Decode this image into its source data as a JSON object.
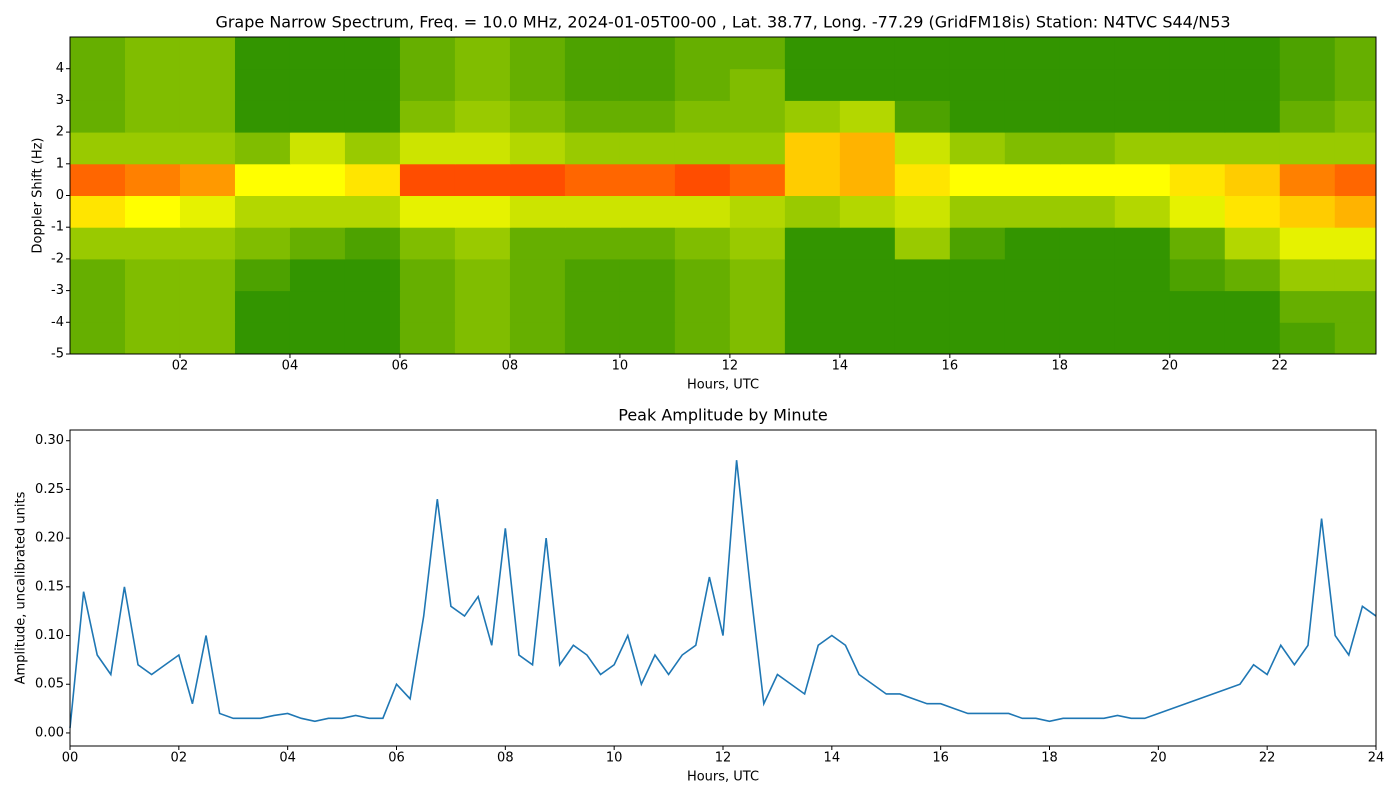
{
  "chart_data": [
    {
      "type": "heatmap",
      "title": "Grape Narrow Spectrum, Freq. = 10.0 MHz, 2024-01-05T00-00 , Lat.  38.77, Long. -77.29 (GridFM18is) Station: N4TVC S44/N53",
      "xlabel": "Hours, UTC",
      "ylabel": "Doppler Shift (Hz)",
      "xlim": [
        0,
        23.75
      ],
      "ylim": [
        -5,
        5
      ],
      "xticks": [
        {
          "value": 2,
          "label": "02"
        },
        {
          "value": 4,
          "label": "04"
        },
        {
          "value": 6,
          "label": "06"
        },
        {
          "value": 8,
          "label": "08"
        },
        {
          "value": 10,
          "label": "10"
        },
        {
          "value": 12,
          "label": "12"
        },
        {
          "value": 14,
          "label": "14"
        },
        {
          "value": 16,
          "label": "16"
        },
        {
          "value": 18,
          "label": "18"
        },
        {
          "value": 20,
          "label": "20"
        },
        {
          "value": 22,
          "label": "22"
        }
      ],
      "yticks": [
        -5,
        -4,
        -3,
        -2,
        -1,
        0,
        1,
        2,
        3,
        4
      ],
      "x_bins": [
        0,
        1,
        2,
        3,
        4,
        5,
        6,
        7,
        8,
        9,
        10,
        11,
        12,
        13,
        14,
        15,
        16,
        17,
        18,
        19,
        20,
        21,
        22,
        23,
        23.75
      ],
      "y_bins": [
        -5,
        -4,
        -3,
        -2,
        -1,
        0,
        1,
        2,
        3,
        4,
        5
      ],
      "colormap": [
        [
          0,
          "#007a00"
        ],
        [
          0.5,
          "#ffff00"
        ],
        [
          1,
          "#ff0000"
        ]
      ],
      "values": [
        [
          0.2,
          0.25,
          0.25,
          0.1,
          0.1,
          0.1,
          0.2,
          0.25,
          0.2,
          0.15,
          0.15,
          0.2,
          0.25,
          0.1,
          0.1,
          0.1,
          0.1,
          0.1,
          0.1,
          0.1,
          0.1,
          0.1,
          0.15,
          0.2
        ],
        [
          0.2,
          0.25,
          0.25,
          0.1,
          0.1,
          0.1,
          0.2,
          0.25,
          0.2,
          0.15,
          0.15,
          0.2,
          0.25,
          0.1,
          0.1,
          0.1,
          0.1,
          0.1,
          0.1,
          0.1,
          0.1,
          0.1,
          0.2,
          0.2
        ],
        [
          0.2,
          0.25,
          0.25,
          0.15,
          0.1,
          0.1,
          0.2,
          0.25,
          0.2,
          0.15,
          0.15,
          0.2,
          0.25,
          0.1,
          0.1,
          0.1,
          0.1,
          0.1,
          0.1,
          0.1,
          0.15,
          0.2,
          0.3,
          0.3
        ],
        [
          0.3,
          0.3,
          0.3,
          0.25,
          0.2,
          0.15,
          0.25,
          0.3,
          0.2,
          0.2,
          0.2,
          0.25,
          0.3,
          0.1,
          0.1,
          0.3,
          0.15,
          0.1,
          0.1,
          0.1,
          0.2,
          0.35,
          0.45,
          0.45
        ],
        [
          0.55,
          0.5,
          0.45,
          0.35,
          0.35,
          0.35,
          0.45,
          0.45,
          0.4,
          0.4,
          0.4,
          0.4,
          0.35,
          0.3,
          0.35,
          0.4,
          0.3,
          0.3,
          0.3,
          0.35,
          0.45,
          0.55,
          0.6,
          0.65
        ],
        [
          0.8,
          0.75,
          0.7,
          0.5,
          0.5,
          0.55,
          0.85,
          0.85,
          0.85,
          0.8,
          0.8,
          0.85,
          0.8,
          0.6,
          0.65,
          0.55,
          0.5,
          0.5,
          0.5,
          0.5,
          0.55,
          0.6,
          0.75,
          0.8
        ],
        [
          0.3,
          0.3,
          0.3,
          0.25,
          0.4,
          0.3,
          0.4,
          0.4,
          0.35,
          0.3,
          0.3,
          0.3,
          0.3,
          0.6,
          0.65,
          0.4,
          0.3,
          0.25,
          0.25,
          0.3,
          0.3,
          0.3,
          0.3,
          0.3
        ],
        [
          0.2,
          0.25,
          0.25,
          0.1,
          0.1,
          0.1,
          0.25,
          0.3,
          0.25,
          0.2,
          0.2,
          0.25,
          0.25,
          0.3,
          0.35,
          0.15,
          0.1,
          0.1,
          0.1,
          0.1,
          0.1,
          0.1,
          0.2,
          0.25
        ],
        [
          0.2,
          0.25,
          0.25,
          0.1,
          0.1,
          0.1,
          0.2,
          0.25,
          0.2,
          0.15,
          0.15,
          0.2,
          0.25,
          0.1,
          0.1,
          0.1,
          0.1,
          0.1,
          0.1,
          0.1,
          0.1,
          0.1,
          0.15,
          0.2
        ],
        [
          0.2,
          0.25,
          0.25,
          0.1,
          0.1,
          0.1,
          0.2,
          0.25,
          0.2,
          0.15,
          0.15,
          0.2,
          0.2,
          0.1,
          0.1,
          0.1,
          0.1,
          0.1,
          0.1,
          0.1,
          0.1,
          0.1,
          0.15,
          0.2
        ]
      ]
    },
    {
      "type": "line",
      "title": "Peak Amplitude by Minute",
      "xlabel": "Hours, UTC",
      "ylabel": "Amplitude, uncalibrated units",
      "xlim": [
        0,
        24
      ],
      "ylim": [
        -0.0134,
        0.311
      ],
      "xticks": [
        {
          "value": 0,
          "label": "00"
        },
        {
          "value": 2,
          "label": "02"
        },
        {
          "value": 4,
          "label": "04"
        },
        {
          "value": 6,
          "label": "06"
        },
        {
          "value": 8,
          "label": "08"
        },
        {
          "value": 10,
          "label": "10"
        },
        {
          "value": 12,
          "label": "12"
        },
        {
          "value": 14,
          "label": "14"
        },
        {
          "value": 16,
          "label": "16"
        },
        {
          "value": 18,
          "label": "18"
        },
        {
          "value": 20,
          "label": "20"
        },
        {
          "value": 22,
          "label": "22"
        },
        {
          "value": 24,
          "label": "24"
        }
      ],
      "yticks": [
        {
          "value": 0,
          "label": "0.00"
        },
        {
          "value": 0.05,
          "label": "0.05"
        },
        {
          "value": 0.1,
          "label": "0.10"
        },
        {
          "value": 0.15,
          "label": "0.15"
        },
        {
          "value": 0.2,
          "label": "0.20"
        },
        {
          "value": 0.25,
          "label": "0.25"
        },
        {
          "value": 0.3,
          "label": "0.30"
        }
      ],
      "color": "#1f77b4",
      "x": [
        0,
        0.25,
        0.5,
        0.75,
        1,
        1.25,
        1.5,
        1.75,
        2,
        2.25,
        2.5,
        2.75,
        3,
        3.25,
        3.5,
        3.75,
        4,
        4.25,
        4.5,
        4.75,
        5,
        5.25,
        5.5,
        5.75,
        6,
        6.25,
        6.5,
        6.75,
        7,
        7.25,
        7.5,
        7.75,
        8,
        8.25,
        8.5,
        8.75,
        9,
        9.25,
        9.5,
        9.75,
        10,
        10.25,
        10.5,
        10.75,
        11,
        11.25,
        11.5,
        11.75,
        12,
        12.25,
        12.5,
        12.75,
        13,
        13.25,
        13.5,
        13.75,
        14,
        14.25,
        14.5,
        14.75,
        15,
        15.25,
        15.5,
        15.75,
        16,
        16.25,
        16.5,
        16.75,
        17,
        17.25,
        17.5,
        17.75,
        18,
        18.25,
        18.5,
        18.75,
        19,
        19.25,
        19.5,
        19.75,
        20,
        20.25,
        20.5,
        20.75,
        21,
        21.25,
        21.5,
        21.75,
        22,
        22.25,
        22.5,
        22.75,
        23,
        23.25,
        23.5,
        23.75,
        24
      ],
      "values": [
        0.005,
        0.145,
        0.08,
        0.06,
        0.15,
        0.07,
        0.06,
        0.07,
        0.08,
        0.03,
        0.1,
        0.02,
        0.015,
        0.015,
        0.015,
        0.018,
        0.02,
        0.015,
        0.012,
        0.015,
        0.015,
        0.018,
        0.015,
        0.015,
        0.05,
        0.035,
        0.12,
        0.24,
        0.13,
        0.12,
        0.14,
        0.09,
        0.21,
        0.08,
        0.07,
        0.2,
        0.07,
        0.09,
        0.08,
        0.06,
        0.07,
        0.1,
        0.05,
        0.08,
        0.06,
        0.08,
        0.09,
        0.16,
        0.1,
        0.28,
        0.15,
        0.03,
        0.06,
        0.05,
        0.04,
        0.09,
        0.1,
        0.09,
        0.06,
        0.05,
        0.04,
        0.04,
        0.035,
        0.03,
        0.03,
        0.025,
        0.02,
        0.02,
        0.02,
        0.02,
        0.015,
        0.015,
        0.012,
        0.015,
        0.015,
        0.015,
        0.015,
        0.018,
        0.015,
        0.015,
        0.02,
        0.025,
        0.03,
        0.035,
        0.04,
        0.045,
        0.05,
        0.07,
        0.06,
        0.09,
        0.07,
        0.09,
        0.22,
        0.1,
        0.08,
        0.13,
        0.12
      ]
    }
  ]
}
